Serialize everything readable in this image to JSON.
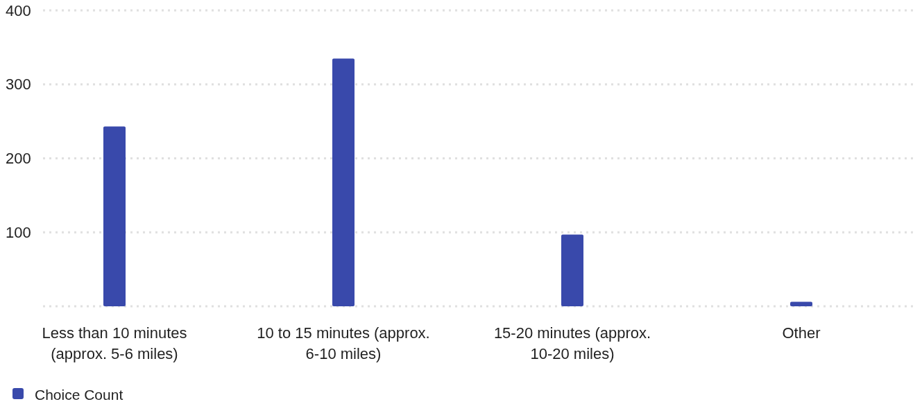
{
  "chart_data": {
    "type": "bar",
    "categories": [
      "Less than 10 minutes (approx. 5-6 miles)",
      "10 to 15 minutes (approx. 6-10 miles)",
      "15-20 minutes (approx. 10-20 miles)",
      "Other"
    ],
    "series": [
      {
        "name": "Choice Count",
        "color": "#3949ab",
        "values": [
          243,
          335,
          97,
          6
        ]
      }
    ],
    "ylim": [
      0,
      400
    ],
    "yticks": [
      {
        "value": 0,
        "label": null
      },
      100,
      200,
      300,
      400
    ],
    "grid": "y",
    "legend": "bottom left"
  }
}
